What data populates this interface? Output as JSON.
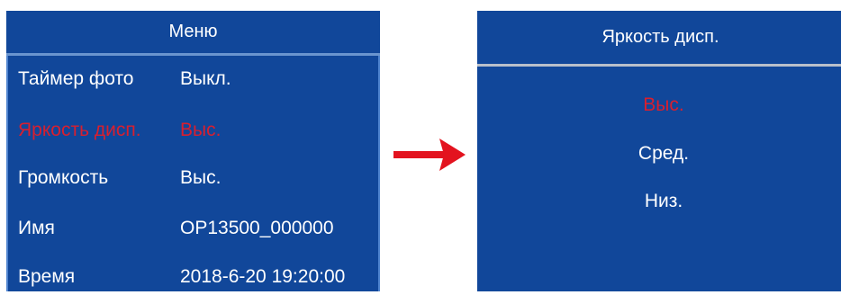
{
  "menu": {
    "title": "Меню",
    "rows": [
      {
        "label": "Таймер фото",
        "value": "Выкл.",
        "selected": false
      },
      {
        "label": "Яркость дисп.",
        "value": "Выс.",
        "selected": true
      },
      {
        "label": "Громкость",
        "value": "Выс.",
        "selected": false
      },
      {
        "label": "Имя",
        "value": "OP13500_000000",
        "selected": false
      },
      {
        "label": "Время",
        "value": "2018-6-20 19:20:00",
        "selected": false
      }
    ]
  },
  "arrow": {
    "icon": "right-arrow-icon",
    "color": "#e3131f"
  },
  "submenu": {
    "title": "Яркость дисп.",
    "options": [
      {
        "label": "Выс.",
        "selected": true
      },
      {
        "label": "Сред.",
        "selected": false
      },
      {
        "label": "Низ.",
        "selected": false
      }
    ]
  },
  "colors": {
    "screen_background": "#11479a",
    "selected_text": "#d81f2f",
    "normal_text": "#ffffff"
  }
}
